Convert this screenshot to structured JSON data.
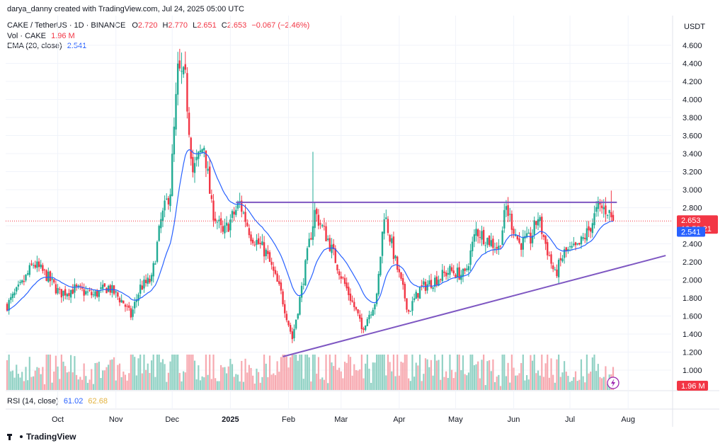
{
  "header": {
    "credit": "darya_danny created with TradingView.com, Jul 24, 2025 05:00 UTC",
    "symbol": "CAKE / TetherUS · 1D · BINANCE",
    "o_label": "O",
    "o_value": "2.720",
    "h_label": "H",
    "h_value": "2.770",
    "l_label": "L",
    "l_value": "2.651",
    "c_label": "C",
    "c_value": "2.653",
    "change": "−0.067 (−2.46%)",
    "vol_label": "Vol · CAKE",
    "vol_value": "1.96 M",
    "ema_label": "EMA (20, close)",
    "ema_value": "2.541",
    "rsi_label": "RSI (14, close)",
    "rsi_value1": "61.02",
    "rsi_value2": "62.68"
  },
  "brand": {
    "name": "TradingView"
  },
  "colors": {
    "up": "#22ab94",
    "down": "#f23645",
    "ema": "#2962ff",
    "trendline": "#7e57c2",
    "grid": "#f0f3fa",
    "volume_up": "#92d2c5",
    "volume_down": "#f7a9b0"
  },
  "chart_data": {
    "type": "candlestick",
    "currency_label": "USDT",
    "y_ticks": [
      "4.600",
      "4.400",
      "4.200",
      "4.000",
      "3.800",
      "3.600",
      "3.400",
      "3.200",
      "3.000",
      "2.800",
      "2.600",
      "2.400",
      "2.200",
      "2.000",
      "1.800",
      "1.600",
      "1.400",
      "1.200",
      "1.000"
    ],
    "ylim": [
      0.88,
      4.72
    ],
    "x_ticks": [
      {
        "label": "Oct",
        "date": "2024-10-01",
        "bold": false
      },
      {
        "label": "Nov",
        "date": "2024-11-01",
        "bold": false
      },
      {
        "label": "Dec",
        "date": "2024-12-01",
        "bold": false
      },
      {
        "label": "2025",
        "date": "2025-01-01",
        "bold": true
      },
      {
        "label": "Feb",
        "date": "2025-02-01",
        "bold": false
      },
      {
        "label": "Mar",
        "date": "2025-03-01",
        "bold": false
      },
      {
        "label": "Apr",
        "date": "2025-04-01",
        "bold": false
      },
      {
        "label": "May",
        "date": "2025-05-01",
        "bold": false
      },
      {
        "label": "Jun",
        "date": "2025-06-01",
        "bold": false
      },
      {
        "label": "Jul",
        "date": "2025-07-01",
        "bold": false
      },
      {
        "label": "Aug",
        "date": "2025-08-01",
        "bold": false
      }
    ],
    "first_date": "2024-09-04",
    "last_date": "2025-07-24",
    "close_anchors": [
      [
        "2024-09-04",
        1.72
      ],
      [
        "2024-09-12",
        1.95
      ],
      [
        "2024-09-18",
        2.18
      ],
      [
        "2024-09-25",
        2.05
      ],
      [
        "2024-10-02",
        1.85
      ],
      [
        "2024-10-10",
        1.9
      ],
      [
        "2024-10-20",
        1.83
      ],
      [
        "2024-10-28",
        1.92
      ],
      [
        "2024-11-05",
        1.75
      ],
      [
        "2024-11-09",
        1.6
      ],
      [
        "2024-11-14",
        1.92
      ],
      [
        "2024-11-20",
        2.0
      ],
      [
        "2024-11-25",
        2.65
      ],
      [
        "2024-11-30",
        3.0
      ],
      [
        "2024-12-04",
        4.3
      ],
      [
        "2024-12-08",
        4.2
      ],
      [
        "2024-12-12",
        3.2
      ],
      [
        "2024-12-18",
        3.5
      ],
      [
        "2024-12-22",
        2.8
      ],
      [
        "2024-12-28",
        2.5
      ],
      [
        "2025-01-06",
        2.85
      ],
      [
        "2025-01-12",
        2.5
      ],
      [
        "2025-01-20",
        2.3
      ],
      [
        "2025-01-28",
        1.85
      ],
      [
        "2025-02-03",
        1.35
      ],
      [
        "2025-02-08",
        1.9
      ],
      [
        "2025-02-12",
        2.4
      ],
      [
        "2025-02-15",
        2.75
      ],
      [
        "2025-02-22",
        2.45
      ],
      [
        "2025-03-01",
        2.05
      ],
      [
        "2025-03-10",
        1.6
      ],
      [
        "2025-03-12",
        1.45
      ],
      [
        "2025-03-20",
        1.8
      ],
      [
        "2025-03-24",
        2.75
      ],
      [
        "2025-03-30",
        2.2
      ],
      [
        "2025-04-06",
        1.65
      ],
      [
        "2025-04-12",
        1.9
      ],
      [
        "2025-04-20",
        2.0
      ],
      [
        "2025-04-28",
        2.1
      ],
      [
        "2025-05-06",
        2.05
      ],
      [
        "2025-05-12",
        2.55
      ],
      [
        "2025-05-18",
        2.45
      ],
      [
        "2025-05-24",
        2.35
      ],
      [
        "2025-05-28",
        2.8
      ],
      [
        "2025-06-04",
        2.4
      ],
      [
        "2025-06-10",
        2.45
      ],
      [
        "2025-06-14",
        2.7
      ],
      [
        "2025-06-18",
        2.4
      ],
      [
        "2025-06-23",
        2.05
      ],
      [
        "2025-06-28",
        2.3
      ],
      [
        "2025-07-05",
        2.35
      ],
      [
        "2025-07-11",
        2.55
      ],
      [
        "2025-07-16",
        2.8
      ],
      [
        "2025-07-21",
        2.78
      ],
      [
        "2025-07-24",
        2.653
      ]
    ],
    "spikes": [
      {
        "date": "2025-02-14",
        "high": 3.42
      },
      {
        "date": "2025-07-23",
        "high": 2.99
      },
      {
        "date": "2024-12-06",
        "high": 4.52
      }
    ],
    "last_candle": {
      "date": "2025-07-24",
      "open": 2.72,
      "high": 2.77,
      "low": 2.651,
      "close": 2.653
    },
    "ema_period": 20,
    "resistance": {
      "from": "2025-01-04",
      "to": "2025-07-26",
      "value": 2.86
    },
    "support": {
      "from_date": "2025-01-29",
      "from_value": 1.15,
      "to_date": "2025-08-21",
      "to_value": 2.27
    },
    "last_price_label": "2.653",
    "countdown": "18:59:21",
    "ema_last_label": "2.541",
    "volume_label": "1.96 M"
  }
}
